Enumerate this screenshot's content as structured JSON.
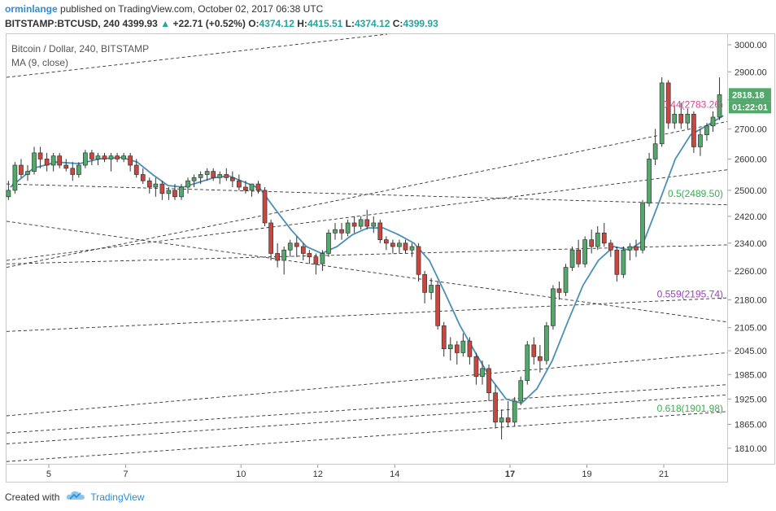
{
  "header": {
    "author": "orminlange",
    "published": "published on TradingView.com, October 02, 2017 06:38 UTC",
    "symbol": "BITSTAMP:BTCUSD, 240",
    "last": "4399.93",
    "change_arrow": "▲",
    "change": "+22.71 (+0.52%)",
    "o_label": "O:",
    "o": "4374.12",
    "h_label": "H:",
    "h": "4415.51",
    "l_label": "L:",
    "l": "4374.12",
    "c_label": "C:",
    "c": "4399.93",
    "up_color": "#26a69a"
  },
  "legend": {
    "title": "Bitcoin / Dollar, 240, BITSTAMP",
    "ma": "MA (9, close)"
  },
  "footer": {
    "created_with": "Created with",
    "brand": "TradingView",
    "icon": "tradingview-cloud-icon"
  },
  "chart_data": {
    "type": "candlestick",
    "title": "Bitcoin / Dollar, 240, BITSTAMP",
    "y_scale": "log",
    "ylim": [
      1775,
      3040
    ],
    "y_ticks": [
      3000,
      2900,
      2800,
      2700,
      2600,
      2500,
      2420,
      2340,
      2260,
      2180,
      2105,
      2045,
      1985,
      1925,
      1865,
      1810
    ],
    "y_tick_labels": [
      "3000.00",
      "2900.00",
      "2800.00",
      "2700.00",
      "2600.00",
      "2500.00",
      "2420.00",
      "2340.00",
      "2260.00",
      "2180.00",
      "2105.00",
      "2045.00",
      "1985.00",
      "1925.00",
      "1865.00",
      "1810.00"
    ],
    "x_range": [
      3.9,
      22.65
    ],
    "x_ticks": [
      5,
      7,
      10,
      12,
      14,
      17,
      19,
      21
    ],
    "x_tick_labels": [
      "5",
      "7",
      "10",
      "12",
      "14",
      "17",
      "19",
      "21"
    ],
    "x_tick_bold": [
      false,
      false,
      false,
      false,
      false,
      true,
      false,
      false
    ],
    "up_color": "#53a96b",
    "down_color": "#c9473f",
    "candles": [
      {
        "t": 3.95,
        "o": 2480,
        "h": 2530,
        "l": 2470,
        "c": 2500
      },
      {
        "t": 4.12,
        "o": 2500,
        "h": 2590,
        "l": 2490,
        "c": 2580
      },
      {
        "t": 4.28,
        "o": 2580,
        "h": 2600,
        "l": 2540,
        "c": 2550
      },
      {
        "t": 4.45,
        "o": 2550,
        "h": 2580,
        "l": 2530,
        "c": 2560
      },
      {
        "t": 4.62,
        "o": 2560,
        "h": 2640,
        "l": 2550,
        "c": 2620
      },
      {
        "t": 4.78,
        "o": 2620,
        "h": 2640,
        "l": 2570,
        "c": 2600
      },
      {
        "t": 4.95,
        "o": 2600,
        "h": 2620,
        "l": 2560,
        "c": 2580
      },
      {
        "t": 5.12,
        "o": 2580,
        "h": 2620,
        "l": 2560,
        "c": 2610
      },
      {
        "t": 5.28,
        "o": 2610,
        "h": 2620,
        "l": 2570,
        "c": 2580
      },
      {
        "t": 5.45,
        "o": 2580,
        "h": 2600,
        "l": 2560,
        "c": 2570
      },
      {
        "t": 5.62,
        "o": 2570,
        "h": 2590,
        "l": 2530,
        "c": 2550
      },
      {
        "t": 5.78,
        "o": 2550,
        "h": 2590,
        "l": 2540,
        "c": 2580
      },
      {
        "t": 5.95,
        "o": 2580,
        "h": 2630,
        "l": 2570,
        "c": 2620
      },
      {
        "t": 6.12,
        "o": 2620,
        "h": 2630,
        "l": 2580,
        "c": 2600
      },
      {
        "t": 6.28,
        "o": 2600,
        "h": 2620,
        "l": 2580,
        "c": 2610
      },
      {
        "t": 6.45,
        "o": 2610,
        "h": 2620,
        "l": 2590,
        "c": 2600
      },
      {
        "t": 6.62,
        "o": 2600,
        "h": 2620,
        "l": 2560,
        "c": 2610
      },
      {
        "t": 6.78,
        "o": 2610,
        "h": 2620,
        "l": 2590,
        "c": 2600
      },
      {
        "t": 6.95,
        "o": 2600,
        "h": 2620,
        "l": 2590,
        "c": 2610
      },
      {
        "t": 7.12,
        "o": 2610,
        "h": 2620,
        "l": 2560,
        "c": 2580
      },
      {
        "t": 7.28,
        "o": 2580,
        "h": 2600,
        "l": 2540,
        "c": 2550
      },
      {
        "t": 7.45,
        "o": 2550,
        "h": 2570,
        "l": 2520,
        "c": 2530
      },
      {
        "t": 7.62,
        "o": 2530,
        "h": 2540,
        "l": 2490,
        "c": 2510
      },
      {
        "t": 7.78,
        "o": 2510,
        "h": 2540,
        "l": 2480,
        "c": 2520
      },
      {
        "t": 7.95,
        "o": 2520,
        "h": 2530,
        "l": 2470,
        "c": 2490
      },
      {
        "t": 8.12,
        "o": 2490,
        "h": 2510,
        "l": 2470,
        "c": 2500
      },
      {
        "t": 8.28,
        "o": 2500,
        "h": 2520,
        "l": 2470,
        "c": 2480
      },
      {
        "t": 8.45,
        "o": 2480,
        "h": 2520,
        "l": 2470,
        "c": 2510
      },
      {
        "t": 8.62,
        "o": 2510,
        "h": 2540,
        "l": 2490,
        "c": 2530
      },
      {
        "t": 8.78,
        "o": 2530,
        "h": 2550,
        "l": 2510,
        "c": 2540
      },
      {
        "t": 8.95,
        "o": 2540,
        "h": 2560,
        "l": 2520,
        "c": 2550
      },
      {
        "t": 9.12,
        "o": 2550,
        "h": 2570,
        "l": 2530,
        "c": 2560
      },
      {
        "t": 9.28,
        "o": 2560,
        "h": 2570,
        "l": 2530,
        "c": 2540
      },
      {
        "t": 9.45,
        "o": 2540,
        "h": 2560,
        "l": 2520,
        "c": 2550
      },
      {
        "t": 9.62,
        "o": 2550,
        "h": 2570,
        "l": 2530,
        "c": 2540
      },
      {
        "t": 9.78,
        "o": 2540,
        "h": 2560,
        "l": 2510,
        "c": 2530
      },
      {
        "t": 9.95,
        "o": 2530,
        "h": 2550,
        "l": 2500,
        "c": 2510
      },
      {
        "t": 10.12,
        "o": 2510,
        "h": 2530,
        "l": 2490,
        "c": 2500
      },
      {
        "t": 10.28,
        "o": 2500,
        "h": 2520,
        "l": 2480,
        "c": 2520
      },
      {
        "t": 10.45,
        "o": 2520,
        "h": 2530,
        "l": 2490,
        "c": 2500
      },
      {
        "t": 10.62,
        "o": 2500,
        "h": 2510,
        "l": 2390,
        "c": 2400
      },
      {
        "t": 10.78,
        "o": 2400,
        "h": 2410,
        "l": 2290,
        "c": 2310
      },
      {
        "t": 10.95,
        "o": 2310,
        "h": 2340,
        "l": 2270,
        "c": 2290
      },
      {
        "t": 11.12,
        "o": 2290,
        "h": 2330,
        "l": 2250,
        "c": 2320
      },
      {
        "t": 11.28,
        "o": 2320,
        "h": 2350,
        "l": 2300,
        "c": 2340
      },
      {
        "t": 11.45,
        "o": 2340,
        "h": 2360,
        "l": 2300,
        "c": 2330
      },
      {
        "t": 11.62,
        "o": 2330,
        "h": 2340,
        "l": 2290,
        "c": 2310
      },
      {
        "t": 11.78,
        "o": 2310,
        "h": 2320,
        "l": 2280,
        "c": 2300
      },
      {
        "t": 11.95,
        "o": 2300,
        "h": 2310,
        "l": 2250,
        "c": 2280
      },
      {
        "t": 12.12,
        "o": 2280,
        "h": 2320,
        "l": 2260,
        "c": 2310
      },
      {
        "t": 12.28,
        "o": 2310,
        "h": 2380,
        "l": 2300,
        "c": 2370
      },
      {
        "t": 12.45,
        "o": 2370,
        "h": 2400,
        "l": 2350,
        "c": 2380
      },
      {
        "t": 12.62,
        "o": 2380,
        "h": 2400,
        "l": 2350,
        "c": 2370
      },
      {
        "t": 12.78,
        "o": 2370,
        "h": 2410,
        "l": 2360,
        "c": 2400
      },
      {
        "t": 12.95,
        "o": 2400,
        "h": 2420,
        "l": 2370,
        "c": 2390
      },
      {
        "t": 13.12,
        "o": 2390,
        "h": 2420,
        "l": 2380,
        "c": 2410
      },
      {
        "t": 13.28,
        "o": 2410,
        "h": 2440,
        "l": 2380,
        "c": 2390
      },
      {
        "t": 13.45,
        "o": 2390,
        "h": 2420,
        "l": 2370,
        "c": 2400
      },
      {
        "t": 13.62,
        "o": 2400,
        "h": 2410,
        "l": 2340,
        "c": 2350
      },
      {
        "t": 13.78,
        "o": 2350,
        "h": 2360,
        "l": 2320,
        "c": 2340
      },
      {
        "t": 13.95,
        "o": 2340,
        "h": 2350,
        "l": 2310,
        "c": 2330
      },
      {
        "t": 14.12,
        "o": 2330,
        "h": 2350,
        "l": 2310,
        "c": 2340
      },
      {
        "t": 14.28,
        "o": 2340,
        "h": 2350,
        "l": 2310,
        "c": 2320
      },
      {
        "t": 14.45,
        "o": 2320,
        "h": 2340,
        "l": 2300,
        "c": 2330
      },
      {
        "t": 14.62,
        "o": 2330,
        "h": 2340,
        "l": 2230,
        "c": 2250
      },
      {
        "t": 14.78,
        "o": 2250,
        "h": 2260,
        "l": 2170,
        "c": 2200
      },
      {
        "t": 14.95,
        "o": 2200,
        "h": 2240,
        "l": 2180,
        "c": 2220
      },
      {
        "t": 15.12,
        "o": 2220,
        "h": 2230,
        "l": 2100,
        "c": 2110
      },
      {
        "t": 15.28,
        "o": 2110,
        "h": 2120,
        "l": 2030,
        "c": 2050
      },
      {
        "t": 15.45,
        "o": 2050,
        "h": 2080,
        "l": 2020,
        "c": 2060
      },
      {
        "t": 15.62,
        "o": 2060,
        "h": 2070,
        "l": 2010,
        "c": 2040
      },
      {
        "t": 15.78,
        "o": 2040,
        "h": 2090,
        "l": 2030,
        "c": 2070
      },
      {
        "t": 15.95,
        "o": 2070,
        "h": 2080,
        "l": 2010,
        "c": 2030
      },
      {
        "t": 16.12,
        "o": 2030,
        "h": 2040,
        "l": 1960,
        "c": 1980
      },
      {
        "t": 16.28,
        "o": 1980,
        "h": 2020,
        "l": 1960,
        "c": 2000
      },
      {
        "t": 16.45,
        "o": 2000,
        "h": 2010,
        "l": 1920,
        "c": 1940
      },
      {
        "t": 16.62,
        "o": 1940,
        "h": 1960,
        "l": 1855,
        "c": 1870
      },
      {
        "t": 16.78,
        "o": 1870,
        "h": 1900,
        "l": 1830,
        "c": 1880
      },
      {
        "t": 16.95,
        "o": 1880,
        "h": 1920,
        "l": 1860,
        "c": 1870
      },
      {
        "t": 17.12,
        "o": 1870,
        "h": 1930,
        "l": 1860,
        "c": 1920
      },
      {
        "t": 17.28,
        "o": 1920,
        "h": 1980,
        "l": 1910,
        "c": 1970
      },
      {
        "t": 17.45,
        "o": 1970,
        "h": 2070,
        "l": 1960,
        "c": 2060
      },
      {
        "t": 17.62,
        "o": 2060,
        "h": 2080,
        "l": 2010,
        "c": 2030
      },
      {
        "t": 17.78,
        "o": 2030,
        "h": 2060,
        "l": 1990,
        "c": 2020
      },
      {
        "t": 17.95,
        "o": 2020,
        "h": 2120,
        "l": 2010,
        "c": 2110
      },
      {
        "t": 18.12,
        "o": 2110,
        "h": 2220,
        "l": 2100,
        "c": 2210
      },
      {
        "t": 18.28,
        "o": 2210,
        "h": 2230,
        "l": 2180,
        "c": 2200
      },
      {
        "t": 18.45,
        "o": 2200,
        "h": 2280,
        "l": 2190,
        "c": 2270
      },
      {
        "t": 18.62,
        "o": 2270,
        "h": 2330,
        "l": 2260,
        "c": 2320
      },
      {
        "t": 18.78,
        "o": 2320,
        "h": 2350,
        "l": 2270,
        "c": 2280
      },
      {
        "t": 18.95,
        "o": 2280,
        "h": 2360,
        "l": 2270,
        "c": 2350
      },
      {
        "t": 19.12,
        "o": 2350,
        "h": 2380,
        "l": 2310,
        "c": 2330
      },
      {
        "t": 19.28,
        "o": 2330,
        "h": 2390,
        "l": 2320,
        "c": 2370
      },
      {
        "t": 19.45,
        "o": 2370,
        "h": 2400,
        "l": 2330,
        "c": 2340
      },
      {
        "t": 19.62,
        "o": 2340,
        "h": 2350,
        "l": 2300,
        "c": 2320
      },
      {
        "t": 19.78,
        "o": 2320,
        "h": 2330,
        "l": 2230,
        "c": 2250
      },
      {
        "t": 19.95,
        "o": 2250,
        "h": 2330,
        "l": 2240,
        "c": 2320
      },
      {
        "t": 20.12,
        "o": 2320,
        "h": 2340,
        "l": 2290,
        "c": 2330
      },
      {
        "t": 20.28,
        "o": 2330,
        "h": 2350,
        "l": 2300,
        "c": 2320
      },
      {
        "t": 20.45,
        "o": 2320,
        "h": 2470,
        "l": 2310,
        "c": 2460
      },
      {
        "t": 20.62,
        "o": 2460,
        "h": 2620,
        "l": 2450,
        "c": 2600
      },
      {
        "t": 20.78,
        "o": 2600,
        "h": 2700,
        "l": 2580,
        "c": 2650
      },
      {
        "t": 20.95,
        "o": 2650,
        "h": 2880,
        "l": 2640,
        "c": 2860
      },
      {
        "t": 21.12,
        "o": 2860,
        "h": 2870,
        "l": 2700,
        "c": 2720
      },
      {
        "t": 21.28,
        "o": 2720,
        "h": 2780,
        "l": 2700,
        "c": 2750
      },
      {
        "t": 21.45,
        "o": 2750,
        "h": 2790,
        "l": 2700,
        "c": 2720
      },
      {
        "t": 21.62,
        "o": 2720,
        "h": 2770,
        "l": 2700,
        "c": 2750
      },
      {
        "t": 21.78,
        "o": 2750,
        "h": 2760,
        "l": 2620,
        "c": 2640
      },
      {
        "t": 21.95,
        "o": 2640,
        "h": 2700,
        "l": 2610,
        "c": 2680
      },
      {
        "t": 22.12,
        "o": 2680,
        "h": 2720,
        "l": 2660,
        "c": 2710
      },
      {
        "t": 22.28,
        "o": 2710,
        "h": 2760,
        "l": 2690,
        "c": 2740
      },
      {
        "t": 22.45,
        "o": 2740,
        "h": 2880,
        "l": 2730,
        "c": 2818
      }
    ],
    "ma": {
      "name": "MA (9, close)",
      "color": "#4a90b8",
      "points": [
        [
          4.0,
          2510
        ],
        [
          4.6,
          2570
        ],
        [
          5.2,
          2590
        ],
        [
          5.8,
          2585
        ],
        [
          6.3,
          2600
        ],
        [
          6.9,
          2605
        ],
        [
          7.3,
          2590
        ],
        [
          7.7,
          2550
        ],
        [
          8.1,
          2515
        ],
        [
          8.5,
          2510
        ],
        [
          8.9,
          2525
        ],
        [
          9.3,
          2540
        ],
        [
          9.7,
          2545
        ],
        [
          10.1,
          2525
        ],
        [
          10.5,
          2505
        ],
        [
          10.9,
          2440
        ],
        [
          11.3,
          2380
        ],
        [
          11.7,
          2330
        ],
        [
          12.1,
          2310
        ],
        [
          12.5,
          2330
        ],
        [
          12.9,
          2365
        ],
        [
          13.3,
          2385
        ],
        [
          13.7,
          2385
        ],
        [
          14.1,
          2365
        ],
        [
          14.5,
          2340
        ],
        [
          14.9,
          2290
        ],
        [
          15.3,
          2200
        ],
        [
          15.7,
          2110
        ],
        [
          16.1,
          2040
        ],
        [
          16.5,
          1975
        ],
        [
          16.9,
          1925
        ],
        [
          17.3,
          1915
        ],
        [
          17.7,
          1950
        ],
        [
          18.1,
          2020
        ],
        [
          18.5,
          2120
        ],
        [
          18.9,
          2220
        ],
        [
          19.3,
          2290
        ],
        [
          19.7,
          2330
        ],
        [
          20.1,
          2320
        ],
        [
          20.5,
          2350
        ],
        [
          20.9,
          2470
        ],
        [
          21.3,
          2600
        ],
        [
          21.7,
          2680
        ],
        [
          22.1,
          2710
        ],
        [
          22.55,
          2745
        ]
      ]
    },
    "trendlines": [
      {
        "p1": [
          3.9,
          2880
        ],
        "p2": [
          13.8,
          3040
        ]
      },
      {
        "p1": [
          3.9,
          2270
        ],
        "p2": [
          22.65,
          2725
        ]
      },
      {
        "p1": [
          3.9,
          2520
        ],
        "p2": [
          22.65,
          2455
        ]
      },
      {
        "p1": [
          3.9,
          2405
        ],
        "p2": [
          22.65,
          2120
        ]
      },
      {
        "p1": [
          3.9,
          2290
        ],
        "p2": [
          22.65,
          2565
        ]
      },
      {
        "p1": [
          3.9,
          2280
        ],
        "p2": [
          22.65,
          2335
        ]
      },
      {
        "p1": [
          3.9,
          2095
        ],
        "p2": [
          22.65,
          2185
        ]
      },
      {
        "p1": [
          3.9,
          1885
        ],
        "p2": [
          22.65,
          2040
        ]
      },
      {
        "p1": [
          3.9,
          1845
        ],
        "p2": [
          22.65,
          1960
        ]
      },
      {
        "p1": [
          3.9,
          1820
        ],
        "p2": [
          22.65,
          1935
        ]
      },
      {
        "p1": [
          3.9,
          1780
        ],
        "p2": [
          22.65,
          1895
        ]
      }
    ],
    "fib_labels": [
      {
        "text": "0.44(2783.26)",
        "value": 2783.26,
        "color": "#e0468f"
      },
      {
        "text": "0.5(2489.50)",
        "value": 2489.5,
        "color": "#37b24d"
      },
      {
        "text": "0.559(2195.74)",
        "value": 2195.74,
        "color": "#9b3fc1"
      },
      {
        "text": "0.618(1901.98)",
        "value": 1901.98,
        "color": "#37b24d"
      }
    ],
    "price_tag": {
      "text": "2818.18",
      "value": 2818.18,
      "color": "#53a96b"
    },
    "countdown_tag": {
      "text": "01:22:01",
      "color": "#53a96b"
    }
  }
}
